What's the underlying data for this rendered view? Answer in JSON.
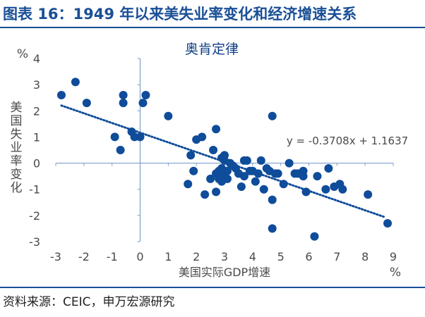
{
  "figure_title": "图表 16：1949 年以来美失业率变化和经济增速关系",
  "source": "资料来源：CEIC，申万宏源研究",
  "colors": {
    "brand": "#1a4f96",
    "point": "#0f4c9a",
    "axis": "#7f9fcf",
    "text": "#4a4a4a"
  },
  "chart_data": {
    "type": "scatter",
    "title": "奥肯定律",
    "xlabel": "美国实际GDP增速",
    "ylabel": "美国失业率变化",
    "x_unit": "%",
    "y_unit": "%",
    "xlim": [
      -3,
      9
    ],
    "ylim": [
      -3,
      4
    ],
    "xticks": [
      -3,
      -2,
      -1,
      0,
      1,
      2,
      3,
      4,
      5,
      6,
      7,
      8,
      9
    ],
    "yticks": [
      -3,
      -2,
      -1,
      0,
      1,
      2,
      3,
      4
    ],
    "grid": false,
    "trendline": {
      "slope": -0.3708,
      "intercept": 1.1637,
      "x_range": [
        -2.8,
        8.7
      ],
      "style": "dotted",
      "equation": "y = -0.3708x + 1.1637"
    },
    "points": [
      [
        -2.8,
        2.6
      ],
      [
        -2.3,
        3.1
      ],
      [
        -1.9,
        2.3
      ],
      [
        -0.9,
        1.0
      ],
      [
        -0.6,
        2.6
      ],
      [
        -0.6,
        2.3
      ],
      [
        -0.7,
        0.5
      ],
      [
        -0.3,
        1.2
      ],
      [
        -0.2,
        1.0
      ],
      [
        0.0,
        1.0
      ],
      [
        0.1,
        2.3
      ],
      [
        0.2,
        2.6
      ],
      [
        1.0,
        1.8
      ],
      [
        1.7,
        -0.8
      ],
      [
        1.8,
        0.3
      ],
      [
        1.9,
        -0.3
      ],
      [
        2.0,
        0.9
      ],
      [
        2.2,
        1.0
      ],
      [
        2.3,
        -1.2
      ],
      [
        2.5,
        -0.6
      ],
      [
        2.6,
        0.5
      ],
      [
        2.7,
        1.3
      ],
      [
        2.7,
        -0.4
      ],
      [
        2.7,
        -1.1
      ],
      [
        2.8,
        -0.3
      ],
      [
        2.8,
        -0.6
      ],
      [
        2.9,
        0.2
      ],
      [
        2.9,
        -0.2
      ],
      [
        2.9,
        -0.7
      ],
      [
        3.0,
        0.3
      ],
      [
        3.0,
        0.1
      ],
      [
        3.0,
        -0.5
      ],
      [
        3.1,
        -0.3
      ],
      [
        3.1,
        -0.6
      ],
      [
        3.2,
        0.0
      ],
      [
        3.3,
        -0.1
      ],
      [
        3.4,
        -0.2
      ],
      [
        3.5,
        -0.4
      ],
      [
        3.6,
        -0.9
      ],
      [
        3.7,
        0.1
      ],
      [
        3.7,
        -0.5
      ],
      [
        3.8,
        0.1
      ],
      [
        3.9,
        -0.3
      ],
      [
        4.0,
        -0.3
      ],
      [
        4.1,
        -0.7
      ],
      [
        4.2,
        -0.4
      ],
      [
        4.3,
        0.1
      ],
      [
        4.4,
        -1.0
      ],
      [
        4.5,
        -0.2
      ],
      [
        4.6,
        -0.3
      ],
      [
        4.7,
        1.8
      ],
      [
        4.7,
        -2.5
      ],
      [
        4.7,
        -1.4
      ],
      [
        4.8,
        -0.4
      ],
      [
        4.9,
        -0.4
      ],
      [
        5.1,
        -0.8
      ],
      [
        5.3,
        0.0
      ],
      [
        5.5,
        -0.4
      ],
      [
        5.6,
        -0.4
      ],
      [
        5.8,
        -0.3
      ],
      [
        5.8,
        -0.5
      ],
      [
        5.9,
        -1.1
      ],
      [
        6.2,
        -2.8
      ],
      [
        6.3,
        -0.5
      ],
      [
        6.6,
        -1.0
      ],
      [
        6.7,
        -0.2
      ],
      [
        6.9,
        -0.9
      ],
      [
        7.1,
        -0.8
      ],
      [
        7.2,
        -1.0
      ],
      [
        8.1,
        -1.2
      ],
      [
        8.8,
        -2.3
      ]
    ]
  }
}
